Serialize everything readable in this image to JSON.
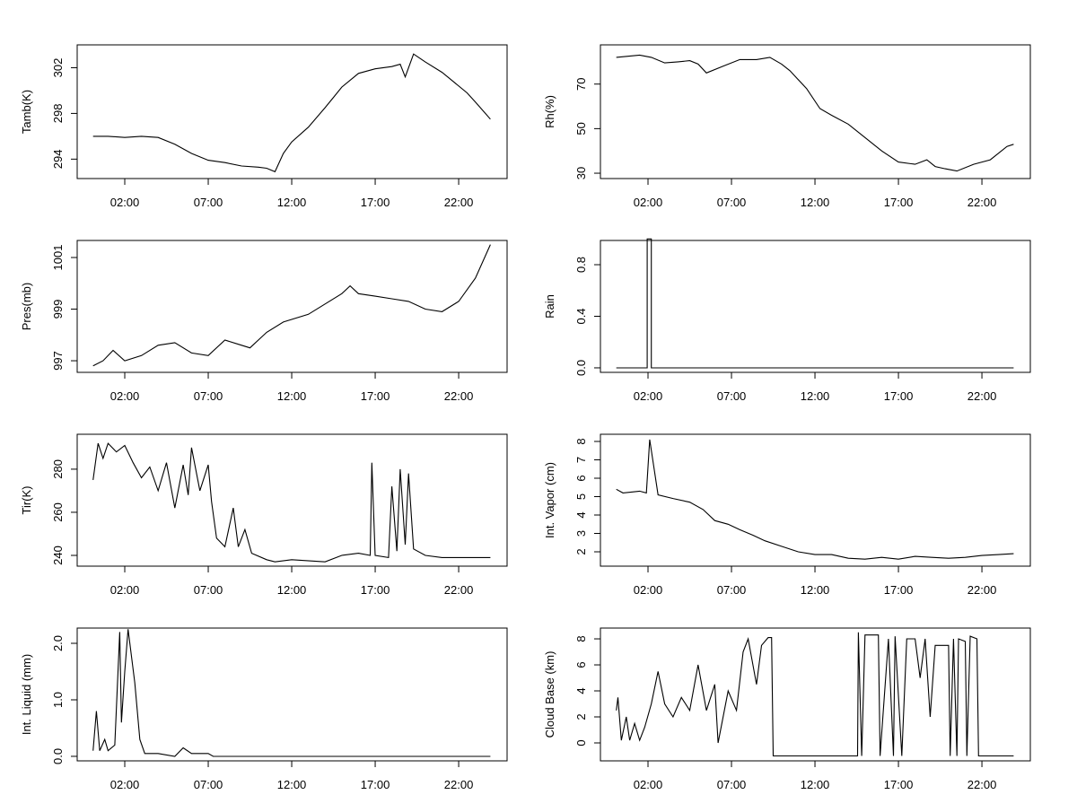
{
  "chart_data": [
    {
      "type": "line",
      "ylabel": "Tamb(K)",
      "color": "#000000",
      "x": [
        0.1,
        1,
        2,
        3,
        4,
        5,
        6,
        7,
        8,
        9,
        10,
        10.5,
        11,
        11.5,
        12,
        13,
        14,
        14.5,
        15,
        16,
        17,
        18,
        18.5,
        18.8,
        19.3,
        20,
        21,
        21.5,
        22.5,
        23,
        23.9
      ],
      "values": [
        296,
        296,
        295.9,
        296,
        295.9,
        295.3,
        294.5,
        293.9,
        293.7,
        293.4,
        293.3,
        293.2,
        292.9,
        294.5,
        295.5,
        296.8,
        298.5,
        299.4,
        300.3,
        301.5,
        301.9,
        302.1,
        302.3,
        301.2,
        303.2,
        302.5,
        301.6,
        301,
        299.8,
        299,
        297.5
      ],
      "xlim": [
        -0.85,
        24.9
      ],
      "ylim": [
        292.3,
        304.0
      ],
      "xticks": [
        {
          "value": 2,
          "label": "02:00"
        },
        {
          "value": 7,
          "label": "07:00"
        },
        {
          "value": 12,
          "label": "12:00"
        },
        {
          "value": 17,
          "label": "17:00"
        },
        {
          "value": 22,
          "label": "22:00"
        }
      ],
      "yticks": [
        294,
        298,
        302
      ]
    },
    {
      "type": "line",
      "ylabel": "Rh(%)",
      "color": "#000000",
      "x": [
        0.1,
        0.8,
        1.5,
        2.2,
        3,
        3.8,
        4.5,
        5,
        5.5,
        6.5,
        7.5,
        8.5,
        9.3,
        10,
        10.5,
        11.5,
        12.3,
        13,
        14,
        15,
        16,
        17,
        18,
        18.7,
        19.2,
        19.8,
        20.5,
        21.5,
        22.5,
        23.5,
        23.9
      ],
      "values": [
        82,
        82.5,
        83,
        82,
        79.5,
        80,
        80.5,
        79,
        75,
        78,
        81,
        81,
        82,
        79,
        76,
        68,
        59,
        56,
        52,
        46,
        40,
        35,
        34,
        36,
        33,
        32,
        31,
        34,
        36,
        42,
        43
      ],
      "xlim": [
        -0.85,
        24.9
      ],
      "ylim": [
        27.6,
        87.6
      ],
      "xticks": [
        {
          "value": 2,
          "label": "02:00"
        },
        {
          "value": 7,
          "label": "07:00"
        },
        {
          "value": 12,
          "label": "12:00"
        },
        {
          "value": 17,
          "label": "17:00"
        },
        {
          "value": 22,
          "label": "22:00"
        }
      ],
      "yticks": [
        30,
        50,
        70
      ]
    },
    {
      "type": "line",
      "ylabel": "Pres(mb)",
      "color": "#000000",
      "x": [
        0.1,
        0.7,
        1.3,
        2,
        3,
        4,
        5,
        6,
        7,
        8,
        9,
        9.5,
        10.5,
        11.5,
        13,
        14,
        15,
        15.5,
        16,
        17,
        18,
        19,
        20,
        21,
        22,
        23,
        23.9
      ],
      "values": [
        996.8,
        997.0,
        997.4,
        997.0,
        997.2,
        997.6,
        997.7,
        997.3,
        997.2,
        997.8,
        997.6,
        997.5,
        998.1,
        998.5,
        998.8,
        999.2,
        999.6,
        999.9,
        999.6,
        999.5,
        999.4,
        999.3,
        999.0,
        998.9,
        999.3,
        1000.2,
        1001.5
      ],
      "xlim": [
        -0.85,
        24.9
      ],
      "ylim": [
        996.55,
        1001.66
      ],
      "xticks": [
        {
          "value": 2,
          "label": "02:00"
        },
        {
          "value": 7,
          "label": "07:00"
        },
        {
          "value": 12,
          "label": "12:00"
        },
        {
          "value": 17,
          "label": "17:00"
        },
        {
          "value": 22,
          "label": "22:00"
        }
      ],
      "yticks": [
        997,
        999,
        1001
      ]
    },
    {
      "type": "line",
      "ylabel": "Rain",
      "color": "#000000",
      "x": [
        0.1,
        1.95,
        1.95,
        2.2,
        2.2,
        23.9
      ],
      "values": [
        0,
        0,
        1,
        1,
        0,
        0
      ],
      "xlim": [
        -0.85,
        24.9
      ],
      "ylim": [
        -0.035,
        0.988
      ],
      "xticks": [
        {
          "value": 2,
          "label": "02:00"
        },
        {
          "value": 7,
          "label": "07:00"
        },
        {
          "value": 12,
          "label": "12:00"
        },
        {
          "value": 17,
          "label": "17:00"
        },
        {
          "value": 22,
          "label": "22:00"
        }
      ],
      "yticks": [
        {
          "value": 0,
          "label": "0.0"
        },
        {
          "value": 0.4,
          "label": "0.4"
        },
        {
          "value": 0.8,
          "label": "0.8"
        }
      ]
    },
    {
      "type": "line",
      "ylabel": "Tir(K)",
      "color": "#000000",
      "x": [
        0.1,
        0.4,
        0.7,
        1,
        1.5,
        2,
        2.5,
        3,
        3.5,
        4,
        4.5,
        5,
        5.5,
        5.8,
        6,
        6.5,
        7,
        7.2,
        7.5,
        8,
        8.5,
        8.8,
        9.2,
        9.6,
        10.5,
        11,
        12,
        14,
        15,
        16,
        16.7,
        16.8,
        17,
        17.8,
        18,
        18.3,
        18.5,
        18.8,
        19,
        19.3,
        20,
        21,
        22,
        23.9
      ],
      "values": [
        275,
        292,
        285,
        292,
        288,
        291,
        283,
        276,
        281,
        270,
        283,
        262,
        282,
        268,
        290,
        270,
        282,
        265,
        248,
        244,
        262,
        244,
        252,
        241,
        238,
        237,
        238,
        237,
        240,
        241,
        240,
        283,
        240,
        239,
        272,
        242,
        280,
        245,
        278,
        243,
        240,
        239,
        239,
        239
      ],
      "xlim": [
        -0.85,
        24.9
      ],
      "ylim": [
        235,
        296.2
      ],
      "xticks": [
        {
          "value": 2,
          "label": "02:00"
        },
        {
          "value": 7,
          "label": "07:00"
        },
        {
          "value": 12,
          "label": "12:00"
        },
        {
          "value": 17,
          "label": "17:00"
        },
        {
          "value": 22,
          "label": "22:00"
        }
      ],
      "yticks": [
        240,
        260,
        280
      ]
    },
    {
      "type": "line",
      "ylabel": "Int. Vapor (cm)",
      "color": "#000000",
      "x": [
        0.1,
        0.5,
        1.5,
        1.9,
        2.1,
        2.6,
        3.5,
        4.5,
        5.3,
        6,
        6.8,
        7.5,
        8.3,
        9,
        10,
        11,
        12,
        13,
        14,
        15,
        16,
        17,
        18,
        19,
        20,
        21,
        22,
        23,
        23.9
      ],
      "values": [
        5.4,
        5.2,
        5.3,
        5.2,
        8.1,
        5.1,
        4.9,
        4.7,
        4.3,
        3.7,
        3.5,
        3.2,
        2.9,
        2.6,
        2.3,
        2.0,
        1.85,
        1.85,
        1.65,
        1.6,
        1.7,
        1.6,
        1.75,
        1.7,
        1.65,
        1.7,
        1.8,
        1.85,
        1.9
      ],
      "xlim": [
        -0.85,
        24.9
      ],
      "ylim": [
        1.22,
        8.39
      ],
      "xticks": [
        {
          "value": 2,
          "label": "02:00"
        },
        {
          "value": 7,
          "label": "07:00"
        },
        {
          "value": 12,
          "label": "12:00"
        },
        {
          "value": 17,
          "label": "17:00"
        },
        {
          "value": 22,
          "label": "22:00"
        }
      ],
      "yticks": [
        2,
        3,
        4,
        5,
        6,
        7,
        8
      ]
    },
    {
      "type": "line",
      "ylabel": "Int. Liquid (mm)",
      "color": "#000000",
      "x": [
        0.1,
        0.3,
        0.5,
        0.8,
        1,
        1.4,
        1.7,
        1.8,
        2.0,
        2.2,
        2.6,
        2.9,
        3.2,
        4,
        5,
        5.5,
        6,
        7,
        7.3,
        23.9
      ],
      "values": [
        0.1,
        0.8,
        0.1,
        0.3,
        0.1,
        0.2,
        2.2,
        0.6,
        1.5,
        2.25,
        1.3,
        0.3,
        0.05,
        0.05,
        0,
        0.15,
        0.05,
        0.05,
        0,
        0
      ],
      "xlim": [
        -0.85,
        24.9
      ],
      "ylim": [
        -0.08,
        2.27
      ],
      "xticks": [
        {
          "value": 2,
          "label": "02:00"
        },
        {
          "value": 7,
          "label": "07:00"
        },
        {
          "value": 12,
          "label": "12:00"
        },
        {
          "value": 17,
          "label": "17:00"
        },
        {
          "value": 22,
          "label": "22:00"
        }
      ],
      "yticks": [
        {
          "value": 0,
          "label": "0.0"
        },
        {
          "value": 1,
          "label": "1.0"
        },
        {
          "value": 2,
          "label": "2.0"
        }
      ]
    },
    {
      "type": "line",
      "ylabel": "Cloud Base (km)",
      "color": "#000000",
      "x": [
        0.1,
        0.2,
        0.4,
        0.7,
        0.9,
        1.2,
        1.5,
        1.8,
        2.2,
        2.6,
        3,
        3.5,
        4,
        4.5,
        5,
        5.5,
        6,
        6.2,
        6.8,
        7.3,
        7.7,
        8,
        8.5,
        8.8,
        9.2,
        9.4,
        9.5,
        14.55,
        14.6,
        14.8,
        15,
        15.8,
        15.9,
        16.4,
        16.7,
        16.8,
        17.2,
        17.5,
        18,
        18.3,
        18.6,
        18.9,
        19.2,
        20,
        20.1,
        20.3,
        20.5,
        20.6,
        21,
        21.1,
        21.3,
        21.7,
        21.8,
        23.9
      ],
      "values": [
        2.5,
        3.5,
        0.2,
        2,
        0.2,
        1.5,
        0.2,
        1.2,
        3,
        5.5,
        3,
        2,
        3.5,
        2.5,
        6,
        2.5,
        4.5,
        0,
        4,
        2.5,
        7,
        8,
        4.5,
        7.5,
        8.1,
        8.1,
        -1,
        -1,
        8.5,
        -1,
        8.3,
        8.3,
        -1,
        8,
        -1,
        8.2,
        -1,
        8,
        8,
        5,
        8,
        2,
        7.5,
        7.5,
        -1,
        8,
        -1,
        8,
        7.8,
        -1,
        8.2,
        8,
        -1,
        -1
      ],
      "xlim": [
        -0.85,
        24.9
      ],
      "ylim": [
        -1.38,
        8.83
      ],
      "xticks": [
        {
          "value": 2,
          "label": "02:00"
        },
        {
          "value": 7,
          "label": "07:00"
        },
        {
          "value": 12,
          "label": "12:00"
        },
        {
          "value": 17,
          "label": "17:00"
        },
        {
          "value": 22,
          "label": "22:00"
        }
      ],
      "yticks": [
        0,
        2,
        4,
        6,
        8
      ]
    }
  ]
}
